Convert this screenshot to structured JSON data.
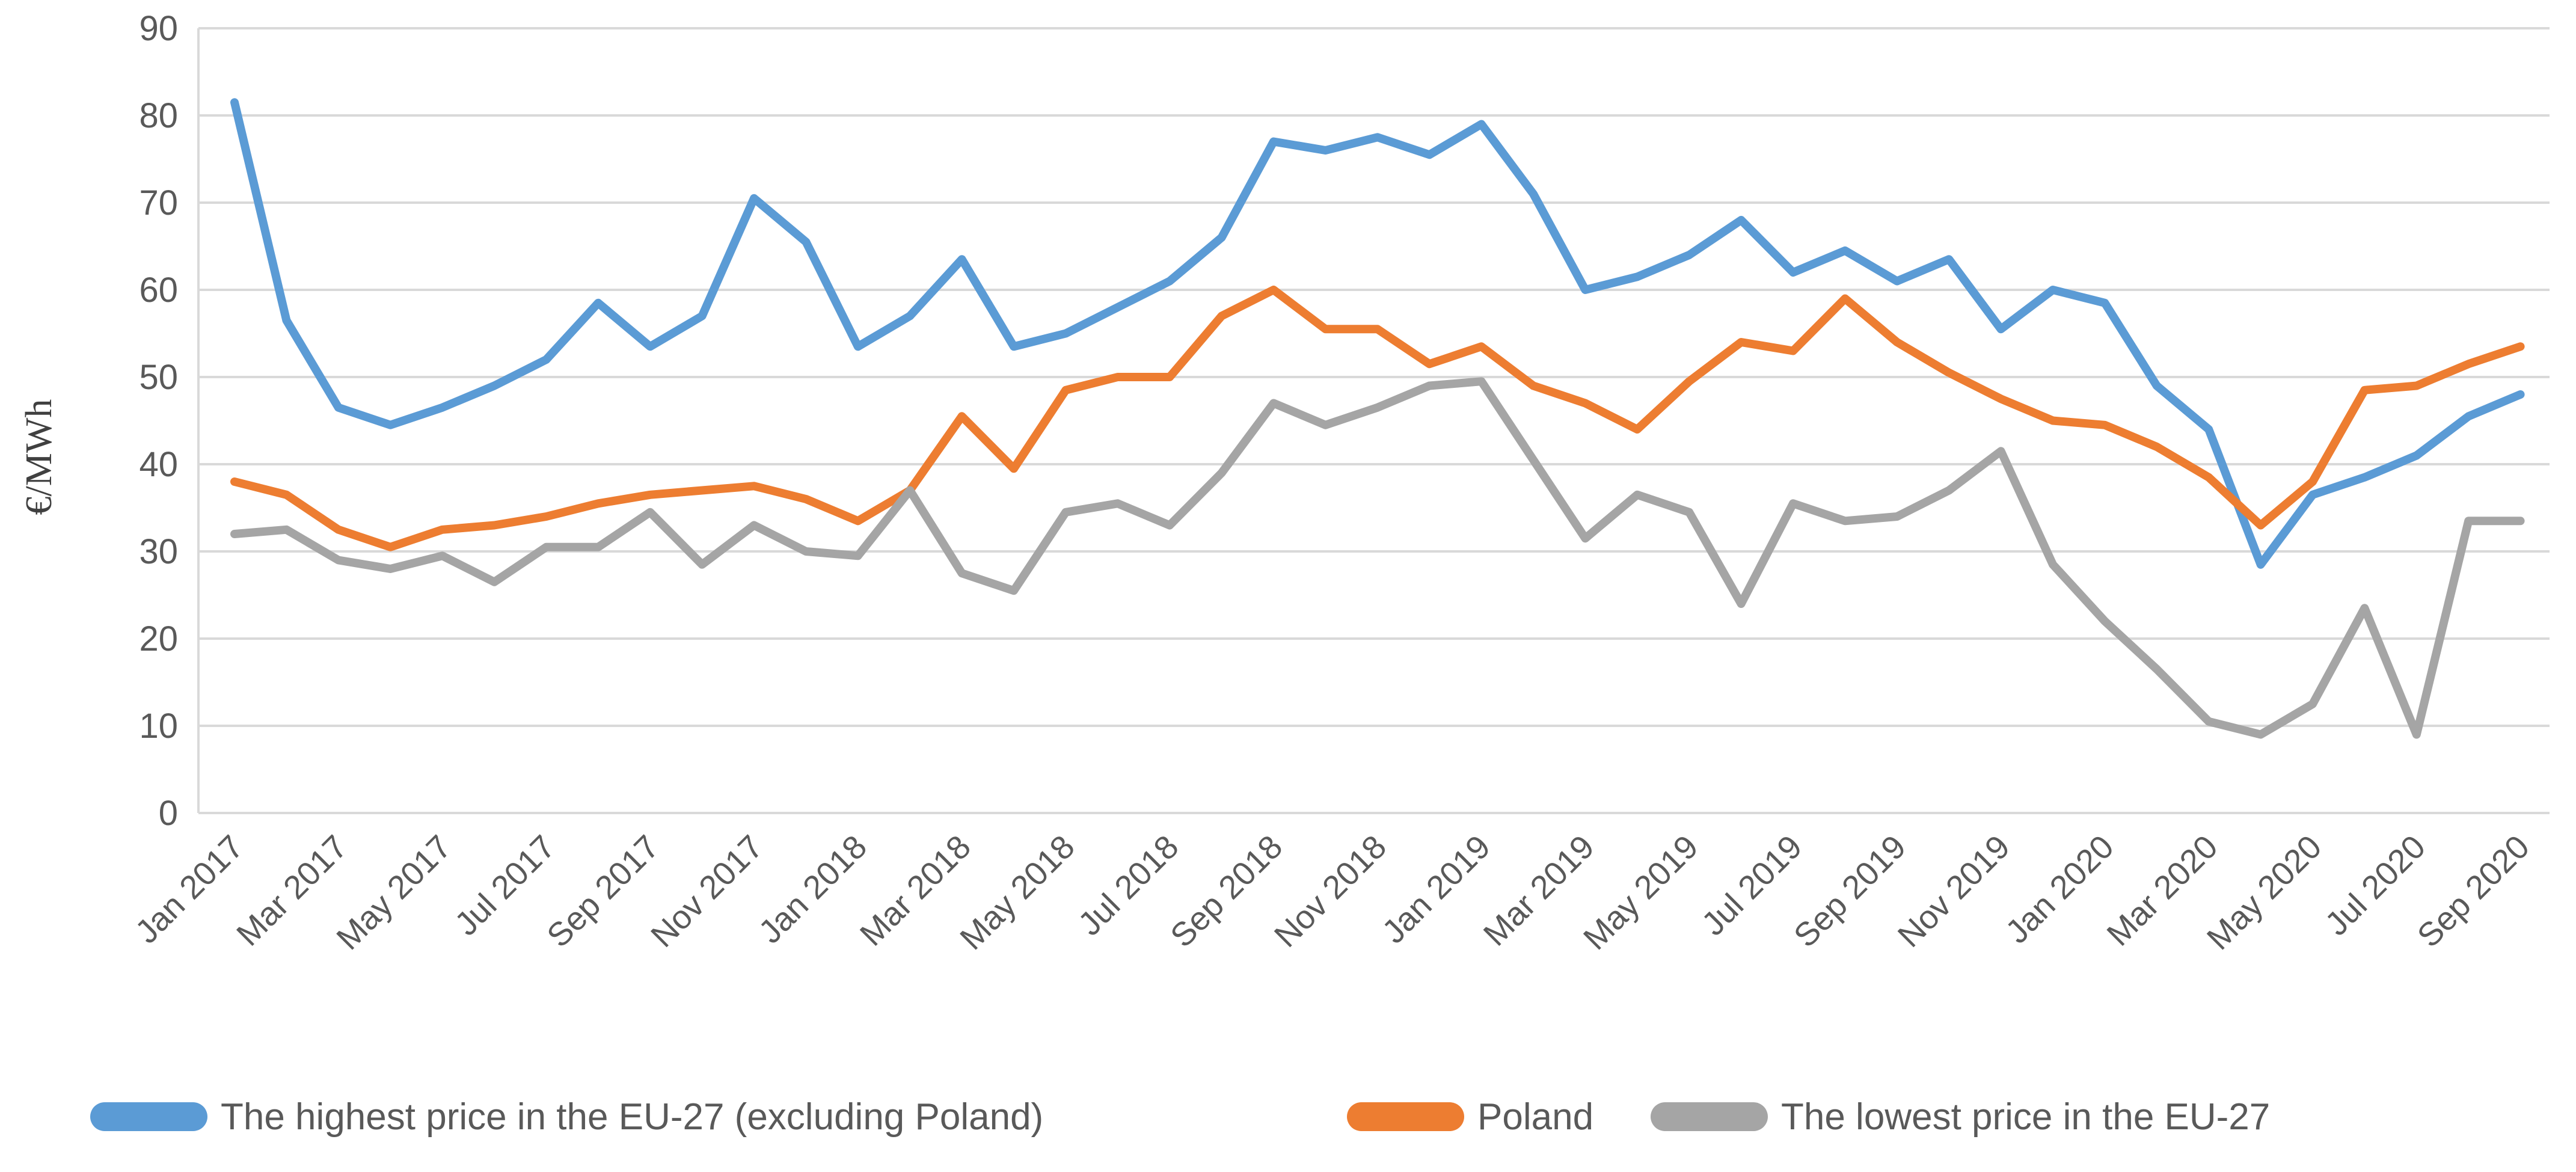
{
  "chart_data": {
    "type": "line",
    "title": "",
    "ylabel": "€/MWh",
    "xlabel": "",
    "ylim": [
      0,
      90
    ],
    "ytick_step": 10,
    "grid": true,
    "legend_position": "bottom",
    "categories": [
      "Jan 2017",
      "Feb 2017",
      "Mar 2017",
      "Apr 2017",
      "May 2017",
      "Jun 2017",
      "Jul 2017",
      "Aug 2017",
      "Sep 2017",
      "Oct 2017",
      "Nov 2017",
      "Dec 2017",
      "Jan 2018",
      "Feb 2018",
      "Mar 2018",
      "Apr 2018",
      "May 2018",
      "Jun 2018",
      "Jul 2018",
      "Aug 2018",
      "Sep 2018",
      "Oct 2018",
      "Nov 2018",
      "Dec 2018",
      "Jan 2019",
      "Feb 2019",
      "Mar 2019",
      "Apr 2019",
      "May 2019",
      "Jun 2019",
      "Jul 2019",
      "Aug 2019",
      "Sep 2019",
      "Oct 2019",
      "Nov 2019",
      "Dec 2019",
      "Jan 2020",
      "Feb 2020",
      "Mar 2020",
      "Apr 2020",
      "May 2020",
      "Jun 2020",
      "Jul 2020",
      "Aug 2020",
      "Sep 2020"
    ],
    "x_tick_labels": [
      "Jan 2017",
      "Mar 2017",
      "May 2017",
      "Jul 2017",
      "Sep 2017",
      "Nov 2017",
      "Jan 2018",
      "Mar 2018",
      "May 2018",
      "Jul 2018",
      "Sep 2018",
      "Nov 2018",
      "Jan 2019",
      "Mar 2019",
      "May 2019",
      "Jul 2019",
      "Sep 2019",
      "Nov 2019",
      "Jan 2020",
      "Mar 2020",
      "May 2020",
      "Jul 2020",
      "Sep 2020"
    ],
    "series": [
      {
        "id": "highest-eu27",
        "name": "The highest price in the EU-27 (excluding Poland)",
        "color": "#5B9BD5",
        "values": [
          81.5,
          56.5,
          46.5,
          44.5,
          46.5,
          49,
          52,
          58.5,
          53.5,
          57,
          70.5,
          65.5,
          53.5,
          57,
          63.5,
          53.5,
          55,
          58,
          61,
          66,
          77,
          76,
          77.5,
          75.5,
          79,
          71,
          60,
          61.5,
          64,
          68,
          62,
          64.5,
          61,
          63.5,
          55.5,
          60,
          58.5,
          49,
          44,
          28.5,
          36.5,
          38.5,
          41,
          45.5,
          48
        ]
      },
      {
        "id": "poland",
        "name": "Poland",
        "color": "#ED7D31",
        "values": [
          38,
          36.5,
          32.5,
          30.5,
          32.5,
          33,
          34,
          35.5,
          36.5,
          37,
          37.5,
          36,
          33.5,
          37,
          45.5,
          39.5,
          48.5,
          50,
          50,
          57,
          60,
          55.5,
          55.5,
          51.5,
          53.5,
          49,
          47,
          44,
          49.5,
          54,
          53,
          59,
          54,
          50.5,
          47.5,
          45,
          44.5,
          42,
          38.5,
          33,
          38,
          48.5,
          49,
          51.5,
          53.5
        ]
      },
      {
        "id": "lowest-eu27",
        "name": "The lowest price in the EU-27",
        "color": "#A5A5A5",
        "values": [
          32,
          32.5,
          29,
          28,
          29.5,
          26.5,
          30.5,
          30.5,
          34.5,
          28.5,
          33,
          30,
          29.5,
          37,
          27.5,
          25.5,
          34.5,
          35.5,
          33,
          39,
          47,
          44.5,
          46.5,
          49,
          49.5,
          40.5,
          31.5,
          36.5,
          34.5,
          24,
          35.5,
          33.5,
          34,
          37,
          41.5,
          28.5,
          22,
          16.5,
          10.5,
          9,
          12.5,
          23.5,
          9,
          33.5,
          33.5
        ]
      }
    ],
    "y_tick_labels": [
      "0",
      "10",
      "20",
      "30",
      "40",
      "50",
      "60",
      "70",
      "80",
      "90"
    ]
  }
}
